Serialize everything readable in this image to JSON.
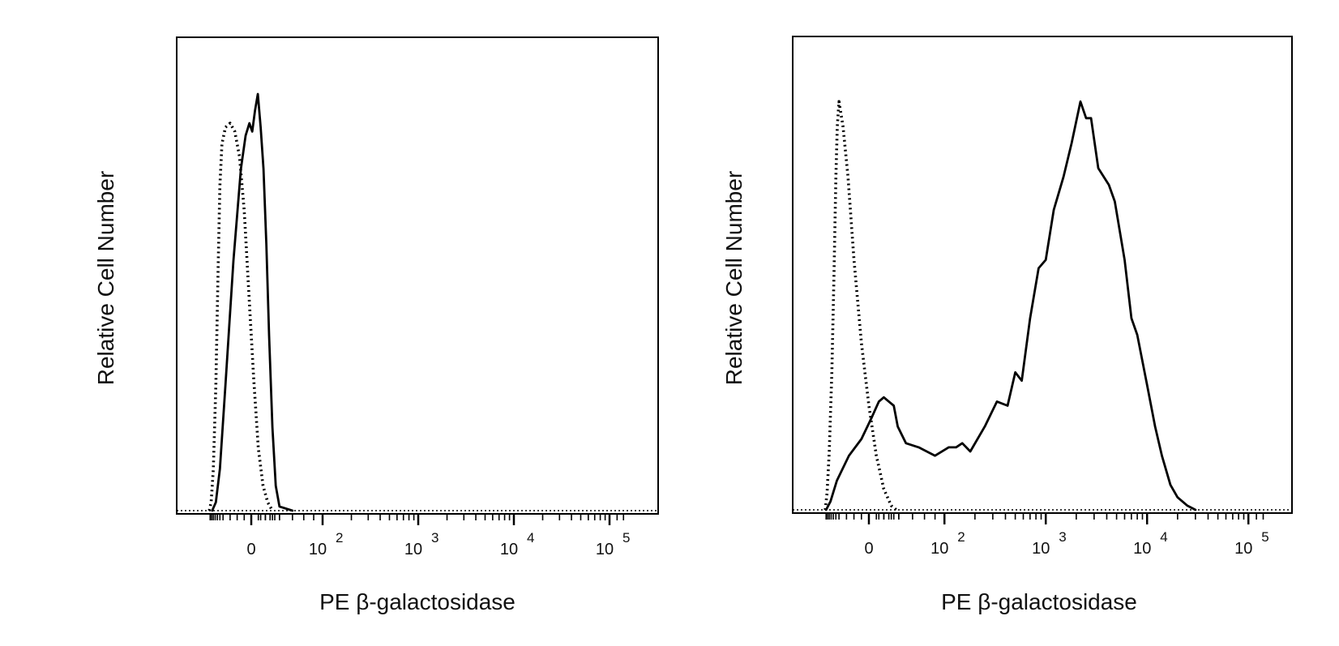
{
  "chart_data": [
    {
      "type": "line",
      "xlabel": "PE β-galactosidase",
      "ylabel": "Relative Cell Number",
      "x_scale": "biexponential",
      "xlim": [
        -200,
        150000
      ],
      "ylim": [
        0,
        1.0
      ],
      "x_ticks": [
        {
          "value": 0,
          "base": "0",
          "exp": ""
        },
        {
          "value": 100,
          "base": "10",
          "exp": "2"
        },
        {
          "value": 1000,
          "base": "10",
          "exp": "3"
        },
        {
          "value": 10000,
          "base": "10",
          "exp": "4"
        },
        {
          "value": 100000,
          "base": "10",
          "exp": "5"
        }
      ],
      "series": [
        {
          "style": "solid",
          "points": [
            [
              -130,
              0
            ],
            [
              -100,
              0.02
            ],
            [
              -75,
              0.1
            ],
            [
              -55,
              0.3
            ],
            [
              -38,
              0.6
            ],
            [
              -22,
              0.82
            ],
            [
              -12,
              0.9
            ],
            [
              -4,
              0.93
            ],
            [
              2,
              0.91
            ],
            [
              8,
              0.96
            ],
            [
              14,
              1.0
            ],
            [
              20,
              0.92
            ],
            [
              26,
              0.82
            ],
            [
              32,
              0.64
            ],
            [
              38,
              0.42
            ],
            [
              45,
              0.2
            ],
            [
              52,
              0.06
            ],
            [
              60,
              0.01
            ],
            [
              70,
              0
            ]
          ]
        },
        {
          "style": "dotted",
          "points": [
            [
              -160,
              0
            ],
            [
              -140,
              0.02
            ],
            [
              -120,
              0.1
            ],
            [
              -100,
              0.3
            ],
            [
              -85,
              0.58
            ],
            [
              -75,
              0.78
            ],
            [
              -65,
              0.88
            ],
            [
              -55,
              0.92
            ],
            [
              -45,
              0.93
            ],
            [
              -35,
              0.91
            ],
            [
              -25,
              0.85
            ],
            [
              -15,
              0.72
            ],
            [
              -5,
              0.52
            ],
            [
              5,
              0.32
            ],
            [
              15,
              0.15
            ],
            [
              25,
              0.06
            ],
            [
              35,
              0.02
            ],
            [
              45,
              0
            ]
          ]
        }
      ]
    },
    {
      "type": "line",
      "xlabel": "PE β-galactosidase",
      "ylabel": "Relative Cell Number",
      "x_scale": "biexponential",
      "xlim": [
        -200,
        150000
      ],
      "ylim": [
        0,
        1.0
      ],
      "x_ticks": [
        {
          "value": 0,
          "base": "0",
          "exp": ""
        },
        {
          "value": 100,
          "base": "10",
          "exp": "2"
        },
        {
          "value": 1000,
          "base": "10",
          "exp": "3"
        },
        {
          "value": 10000,
          "base": "10",
          "exp": "4"
        },
        {
          "value": 100000,
          "base": "10",
          "exp": "5"
        }
      ],
      "series": [
        {
          "style": "solid",
          "points": [
            [
              -150,
              0
            ],
            [
              -110,
              0.02
            ],
            [
              -70,
              0.07
            ],
            [
              -40,
              0.13
            ],
            [
              -15,
              0.17
            ],
            [
              5,
              0.22
            ],
            [
              20,
              0.26
            ],
            [
              30,
              0.27
            ],
            [
              40,
              0.26
            ],
            [
              50,
              0.25
            ],
            [
              58,
              0.2
            ],
            [
              65,
              0.16
            ],
            [
              75,
              0.15
            ],
            [
              90,
              0.13
            ],
            [
              110,
              0.15
            ],
            [
              130,
              0.15
            ],
            [
              150,
              0.16
            ],
            [
              180,
              0.14
            ],
            [
              250,
              0.2
            ],
            [
              330,
              0.26
            ],
            [
              420,
              0.25
            ],
            [
              500,
              0.33
            ],
            [
              580,
              0.31
            ],
            [
              700,
              0.46
            ],
            [
              850,
              0.58
            ],
            [
              1000,
              0.6
            ],
            [
              1200,
              0.72
            ],
            [
              1500,
              0.8
            ],
            [
              1800,
              0.88
            ],
            [
              2200,
              0.98
            ],
            [
              2500,
              0.94
            ],
            [
              2800,
              0.94
            ],
            [
              3300,
              0.82
            ],
            [
              4200,
              0.78
            ],
            [
              4800,
              0.74
            ],
            [
              6000,
              0.6
            ],
            [
              7000,
              0.46
            ],
            [
              8000,
              0.42
            ],
            [
              10000,
              0.3
            ],
            [
              12000,
              0.2
            ],
            [
              14000,
              0.13
            ],
            [
              17000,
              0.06
            ],
            [
              20000,
              0.03
            ],
            [
              25000,
              0.01
            ],
            [
              30000,
              0
            ]
          ]
        },
        {
          "style": "dotted",
          "points": [
            [
              -160,
              0
            ],
            [
              -140,
              0.04
            ],
            [
              -120,
              0.14
            ],
            [
              -100,
              0.33
            ],
            [
              -85,
              0.58
            ],
            [
              -75,
              0.8
            ],
            [
              -68,
              0.92
            ],
            [
              -60,
              0.98
            ],
            [
              -52,
              0.92
            ],
            [
              -42,
              0.8
            ],
            [
              -30,
              0.6
            ],
            [
              -15,
              0.4
            ],
            [
              0,
              0.25
            ],
            [
              15,
              0.13
            ],
            [
              30,
              0.05
            ],
            [
              45,
              0.01
            ],
            [
              55,
              0
            ]
          ]
        }
      ]
    }
  ]
}
